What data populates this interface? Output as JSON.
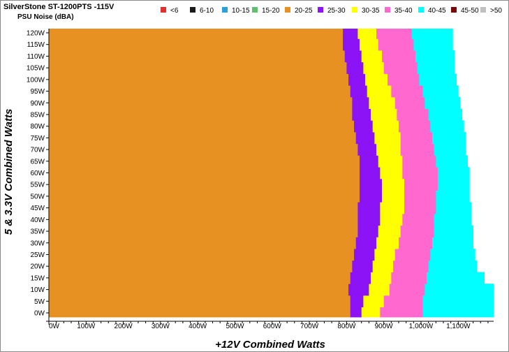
{
  "chart_data": {
    "type": "heatmap",
    "title": "SilverStone ST-1200PTS -115V",
    "subtitle": "PSU Noise (dBA)",
    "xlabel": "+12V Combined Watts",
    "ylabel": "5 & 3.3V Combined Watts",
    "x_ticks": [
      "0W",
      "100W",
      "200W",
      "300W",
      "400W",
      "500W",
      "600W",
      "700W",
      "800W",
      "900W",
      "1,000W",
      "1,100W"
    ],
    "y_ticks": [
      "120W",
      "115W",
      "110W",
      "105W",
      "100W",
      "95W",
      "90W",
      "85W",
      "80W",
      "75W",
      "70W",
      "65W",
      "60W",
      "55W",
      "50W",
      "45W",
      "40W",
      "35W",
      "30W",
      "25W",
      "20W",
      "15W",
      "10W",
      "5W",
      "0W"
    ],
    "xlim": [
      0,
      1200
    ],
    "ylim": [
      0,
      120
    ],
    "legend_position": "top",
    "legend": [
      {
        "label": "<6",
        "color": "#e03030"
      },
      {
        "label": "6-10",
        "color": "#1a1a1a"
      },
      {
        "label": "10-15",
        "color": "#2a9fd8"
      },
      {
        "label": "15-20",
        "color": "#5fbf6f"
      },
      {
        "label": "20-25",
        "color": "#e69121"
      },
      {
        "label": "25-30",
        "color": "#8b13f5"
      },
      {
        "label": "30-35",
        "color": "#ffff00"
      },
      {
        "label": "35-40",
        "color": "#ff69cf"
      },
      {
        "label": "40-45",
        "color": "#00ffff"
      },
      {
        "label": "45-50",
        "color": "#7a0a0a"
      },
      {
        "label": ">50",
        "color": "#c0c0c0"
      }
    ],
    "band_colors": [
      "#e69121",
      "#8b13f5",
      "#ffff00",
      "#ff69cf",
      "#00ffff"
    ],
    "band_labels": [
      "20-25",
      "25-30",
      "30-35",
      "35-40",
      "40-45"
    ],
    "y_values": [
      0,
      5,
      10,
      15,
      20,
      25,
      30,
      35,
      40,
      45,
      50,
      55,
      60,
      65,
      70,
      75,
      80,
      85,
      90,
      95,
      100,
      105,
      110,
      115,
      120
    ],
    "boundaries_x_watts": [
      [
        810,
        840,
        890,
        1005,
        1200
      ],
      [
        810,
        845,
        900,
        1005,
        1200
      ],
      [
        805,
        860,
        915,
        1010,
        1200
      ],
      [
        810,
        865,
        920,
        1015,
        1170
      ],
      [
        815,
        870,
        925,
        1020,
        1150
      ],
      [
        820,
        875,
        930,
        1025,
        1145
      ],
      [
        825,
        880,
        940,
        1030,
        1140
      ],
      [
        830,
        885,
        945,
        1035,
        1140
      ],
      [
        830,
        890,
        950,
        1035,
        1135
      ],
      [
        830,
        890,
        955,
        1040,
        1135
      ],
      [
        835,
        895,
        955,
        1040,
        1130
      ],
      [
        835,
        895,
        955,
        1045,
        1130
      ],
      [
        835,
        890,
        950,
        1045,
        1130
      ],
      [
        835,
        885,
        950,
        1040,
        1125
      ],
      [
        830,
        880,
        945,
        1035,
        1120
      ],
      [
        825,
        875,
        945,
        1030,
        1120
      ],
      [
        820,
        870,
        940,
        1025,
        1115
      ],
      [
        815,
        865,
        935,
        1020,
        1110
      ],
      [
        815,
        860,
        930,
        1010,
        1105
      ],
      [
        810,
        855,
        920,
        1005,
        1100
      ],
      [
        805,
        850,
        910,
        995,
        1095
      ],
      [
        800,
        845,
        900,
        990,
        1090
      ],
      [
        795,
        840,
        895,
        985,
        1090
      ],
      [
        790,
        835,
        885,
        980,
        1085
      ],
      [
        790,
        830,
        880,
        975,
        1085
      ]
    ]
  }
}
